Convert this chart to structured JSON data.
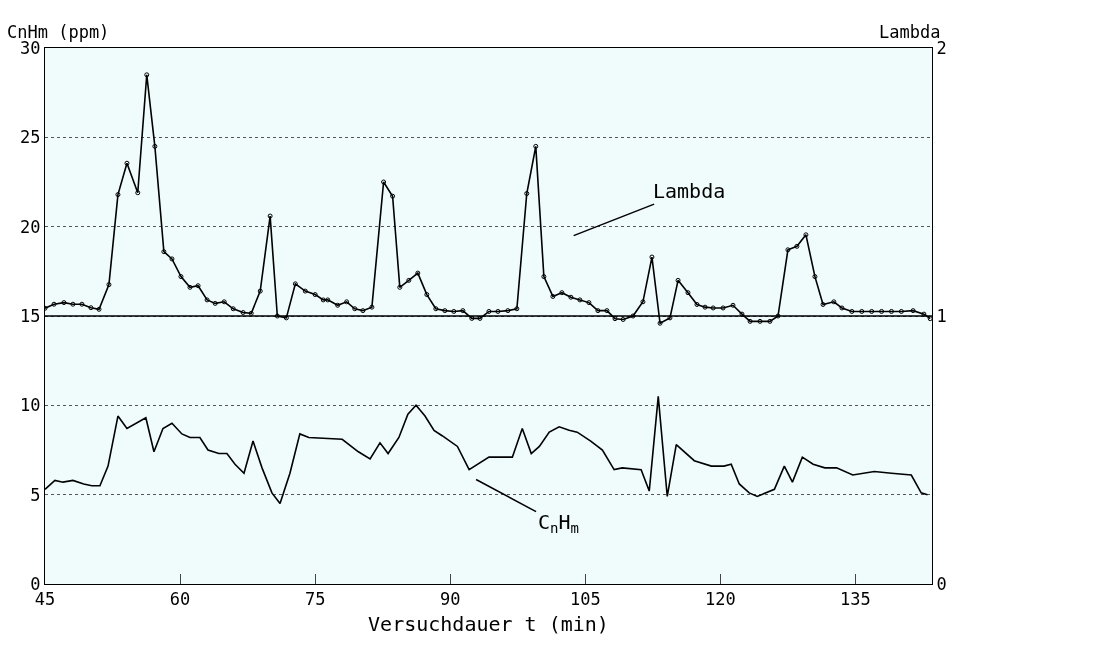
{
  "chart_data": {
    "type": "line",
    "xlabel": "Versuchdauer t (min)",
    "ylabel": "CnHm (ppm)",
    "y2label": "Lambda",
    "xlim": [
      45,
      143.5
    ],
    "xticks": [
      45,
      60,
      75,
      90,
      105,
      120,
      135
    ],
    "ylim": [
      0,
      30
    ],
    "yticks": [
      0,
      5,
      10,
      15,
      20,
      25,
      30
    ],
    "y2lim": [
      0,
      2
    ],
    "y2ticks": [
      0,
      1,
      2
    ],
    "grid": "y",
    "series": [
      {
        "color": "#000000",
        "axis": "y2",
        "marker": "circle",
        "x": [
          45,
          46,
          47.1,
          48.1,
          49.1,
          50.1,
          51,
          52.1,
          53.1,
          54.1,
          55.3,
          56.3,
          57.2,
          58.2,
          59.1,
          60.1,
          61.1,
          62,
          63,
          63.9,
          64.9,
          65.9,
          67,
          67.9,
          68.9,
          70,
          70.8,
          71.8,
          72.8,
          73.9,
          75,
          75.9,
          76.4,
          77.5,
          78.5,
          79.4,
          80.3,
          81.3,
          82.6,
          83.6,
          84.4,
          85.4,
          86.4,
          87.4,
          88.4,
          89.4,
          90.4,
          91.4,
          92.4,
          93.3,
          94.3,
          95.3,
          96.4,
          97.4,
          98.5,
          99.5,
          100.4,
          101.4,
          102.4,
          103.4,
          104.4,
          105.4,
          106.4,
          107.4,
          108.3,
          109.2,
          110.3,
          111.4,
          112.4,
          113.3,
          114.4,
          115.3,
          116.4,
          117.4,
          118.3,
          119.2,
          120.3,
          121.4,
          122.4,
          123.3,
          124.4,
          125.5,
          126.4,
          127.5,
          128.5,
          129.5,
          130.5,
          131.4,
          132.6,
          133.5,
          134.6,
          135.7,
          136.8,
          137.9,
          139,
          140.1,
          141.4,
          142.6,
          143.3
        ],
        "values": [
          1.029,
          1.044,
          1.05,
          1.044,
          1.044,
          1.031,
          1.025,
          1.117,
          1.453,
          1.57,
          1.46,
          1.9,
          1.633,
          1.24,
          1.213,
          1.147,
          1.107,
          1.113,
          1.06,
          1.047,
          1.053,
          1.027,
          1.013,
          1.01,
          1.093,
          1.373,
          1.0,
          0.993,
          1.12,
          1.093,
          1.08,
          1.06,
          1.06,
          1.04,
          1.053,
          1.027,
          1.02,
          1.033,
          1.5,
          1.447,
          1.107,
          1.133,
          1.16,
          1.08,
          1.027,
          1.02,
          1.017,
          1.02,
          0.991,
          0.991,
          1.017,
          1.017,
          1.02,
          1.027,
          1.457,
          1.633,
          1.147,
          1.073,
          1.087,
          1.07,
          1.06,
          1.05,
          1.02,
          1.02,
          0.99,
          0.987,
          1.0,
          1.053,
          1.22,
          0.973,
          0.993,
          1.133,
          1.087,
          1.043,
          1.033,
          1.03,
          1.03,
          1.04,
          1.007,
          0.98,
          0.98,
          0.98,
          1.0,
          1.247,
          1.26,
          1.303,
          1.147,
          1.043,
          1.053,
          1.03,
          1.017,
          1.017,
          1.017,
          1.017,
          1.017,
          1.017,
          1.02,
          1.007,
          0.99
        ]
      },
      {
        "color": "#000000",
        "axis": "y",
        "marker": "none",
        "x": [
          45,
          46.1,
          47,
          48.1,
          49.3,
          50.2,
          51.1,
          52,
          53.1,
          54.1,
          56.2,
          57.1,
          58.1,
          59.1,
          60.2,
          61.1,
          62.2,
          63.1,
          64.3,
          65.2,
          66.1,
          67.1,
          68.1,
          69.1,
          70.2,
          71.1,
          72.2,
          73.3,
          74.3,
          78,
          79.8,
          81.1,
          82.2,
          83.1,
          84.3,
          85.3,
          86.2,
          87.2,
          88.2,
          89.1,
          90.8,
          92.1,
          94.3,
          96.9,
          98,
          99,
          99.9,
          101,
          102.1,
          103.2,
          104.1,
          105.6,
          106.9,
          108.2,
          109.1,
          111.2,
          112.1,
          113.1,
          114.1,
          115.1,
          117.1,
          119,
          120.4,
          121.2,
          122.1,
          123.2,
          124.1,
          126,
          127.1,
          128,
          129.1,
          130.3,
          131.6,
          132.9,
          134.7,
          137.1,
          139,
          141.2,
          142.3,
          143
        ],
        "values": [
          5.3,
          5.8,
          5.7,
          5.8,
          5.6,
          5.5,
          5.5,
          6.6,
          9.4,
          8.7,
          9.3,
          7.4,
          8.7,
          9.0,
          8.4,
          8.2,
          8.2,
          7.5,
          7.3,
          7.3,
          6.7,
          6.2,
          8.0,
          6.5,
          5.1,
          4.5,
          6.2,
          8.4,
          8.2,
          8.1,
          7.4,
          7.0,
          7.9,
          7.3,
          8.2,
          9.5,
          10.0,
          9.4,
          8.6,
          8.3,
          7.7,
          6.4,
          7.1,
          7.1,
          8.7,
          7.3,
          7.7,
          8.5,
          8.8,
          8.6,
          8.5,
          8.0,
          7.5,
          6.4,
          6.5,
          6.4,
          5.2,
          10.5,
          4.9,
          7.8,
          6.9,
          6.6,
          6.6,
          6.7,
          5.6,
          5.1,
          4.9,
          5.3,
          6.6,
          5.7,
          7.1,
          6.7,
          6.5,
          6.5,
          6.1,
          6.3,
          6.2,
          6.1,
          5.1,
          5.0
        ]
      }
    ],
    "ref_lines": [
      {
        "axis": "y2",
        "value": 1,
        "color": "#000000",
        "line_style": "solid"
      }
    ],
    "annotations": [
      "Lambda",
      "C$_{n}$H$_{m}$"
    ]
  }
}
